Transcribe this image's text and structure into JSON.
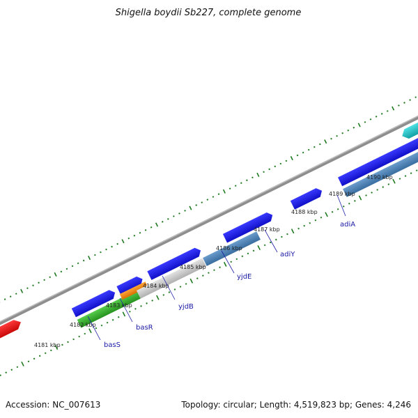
{
  "title": "Shigella boydii Sb227, complete genome",
  "footer": {
    "accession": "Accession: NC_007613",
    "summary": "Topology: circular; Length: 4,519,823 bp; Genes: 4,246"
  },
  "kbp_labels": [
    "4181 kbp",
    "4182 kbp",
    "4183 kbp",
    "4184 kbp",
    "4185 kbp",
    "4186 kbp",
    "4187 kbp",
    "4188 kbp",
    "4189 kbp",
    "4190 kbp"
  ],
  "gene_labels": [
    "basS",
    "basR",
    "yjdB",
    "yjdE",
    "adiY",
    "adiA"
  ],
  "colors": {
    "cds_blue": "#1a1aee",
    "steel": "#4a82b8",
    "gray_feature": "#c9c9c9",
    "green": "#36b02e",
    "orange": "#f08a12",
    "red": "#ee1515",
    "cyan": "#1cc4c8",
    "backbone": "#8c8c8c",
    "ticks": "#1f7a1f"
  }
}
